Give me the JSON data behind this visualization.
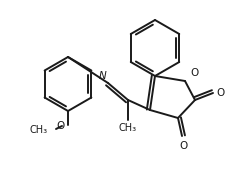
{
  "bg_color": "#ffffff",
  "line_color": "#1a1a1a",
  "line_width": 1.4,
  "font_size": 7.5,
  "figsize": [
    2.38,
    1.88
  ],
  "dpi": 100,
  "xlim": [
    0,
    238
  ],
  "ylim": [
    0,
    188
  ]
}
